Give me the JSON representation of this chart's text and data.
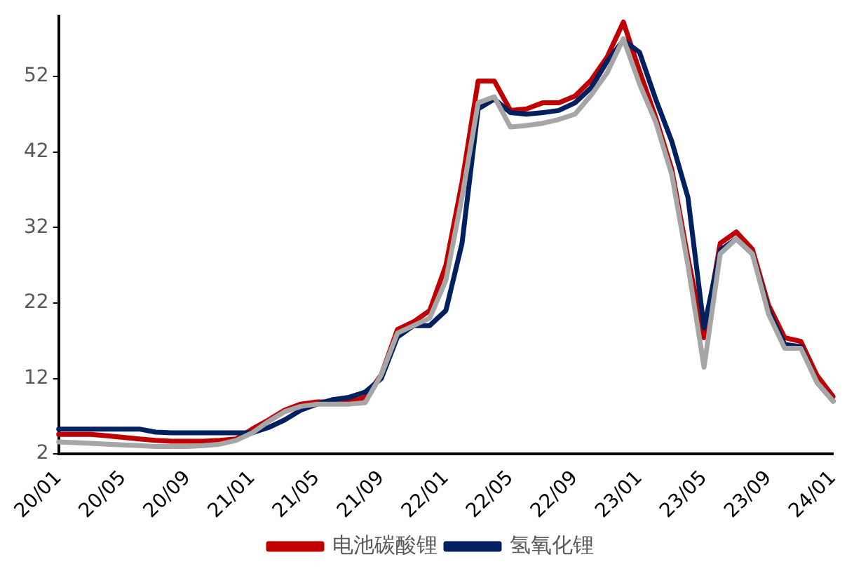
{
  "chart_data": {
    "type": "line",
    "categories": [
      "20/01",
      null,
      null,
      null,
      "20/05",
      null,
      null,
      null,
      "20/09",
      null,
      null,
      null,
      "21/01",
      null,
      null,
      null,
      "21/05",
      null,
      null,
      null,
      "21/09",
      null,
      null,
      null,
      "22/01",
      null,
      null,
      null,
      "22/05",
      null,
      null,
      null,
      "22/09",
      null,
      null,
      null,
      "23/01",
      null,
      null,
      null,
      "23/05",
      null,
      null,
      null,
      "23/09",
      null,
      null,
      null,
      "24/01"
    ],
    "series": [
      {
        "name": "电池碳酸锂",
        "color": "#c00000",
        "values": [
          4.6,
          4.6,
          4.6,
          4.4,
          4.2,
          4.0,
          3.8,
          3.7,
          3.7,
          3.7,
          3.8,
          4.0,
          5.3,
          6.5,
          7.8,
          8.6,
          8.9,
          8.9,
          8.9,
          9.5,
          12.5,
          18.5,
          19.5,
          21,
          27,
          38,
          51.4,
          51.4,
          47.5,
          47.7,
          48.5,
          48.5,
          49.4,
          51.5,
          54.6,
          59.2,
          52.7,
          46.6,
          39.7,
          28,
          17.4,
          29.9,
          31.4,
          29.1,
          21.7,
          17.4,
          16.9,
          12.4,
          9.6
        ]
      },
      {
        "name": "氢氧化锂",
        "color": "#002060",
        "values": [
          5.3,
          5.3,
          5.3,
          5.3,
          5.3,
          5.3,
          4.9,
          4.8,
          4.8,
          4.8,
          4.8,
          4.8,
          4.8,
          5.5,
          6.5,
          7.8,
          8.6,
          9.2,
          9.5,
          10.2,
          12,
          17.5,
          19,
          19,
          21,
          29.9,
          47.7,
          49,
          47.2,
          47,
          47.2,
          47.5,
          48.5,
          50.5,
          54,
          56.8,
          55.2,
          49,
          43.4,
          36,
          18.7,
          29,
          30.5,
          28.5,
          21,
          16.5,
          16.2,
          11.5,
          9
        ]
      },
      {
        "color": "#a6a6a6",
        "values": [
          3.6,
          3.5,
          3.4,
          3.3,
          3.2,
          3.1,
          3.0,
          3.0,
          3.0,
          3.1,
          3.3,
          3.8,
          4.8,
          6.3,
          7.6,
          8.3,
          8.6,
          8.6,
          8.6,
          8.8,
          12.5,
          18,
          19,
          20,
          25,
          36,
          48.5,
          49.3,
          45.3,
          45.5,
          45.8,
          46.3,
          47,
          49.5,
          52.5,
          57,
          51,
          46,
          39,
          27,
          13.5,
          28.5,
          30.5,
          28.5,
          20.5,
          16,
          16,
          11.5,
          9
        ]
      }
    ],
    "ylim": [
      2,
      60
    ],
    "yticks": [
      2,
      12,
      22,
      32,
      42,
      52
    ],
    "grid": false,
    "legend": "bottom",
    "marker": "none",
    "line_style": "solid"
  }
}
